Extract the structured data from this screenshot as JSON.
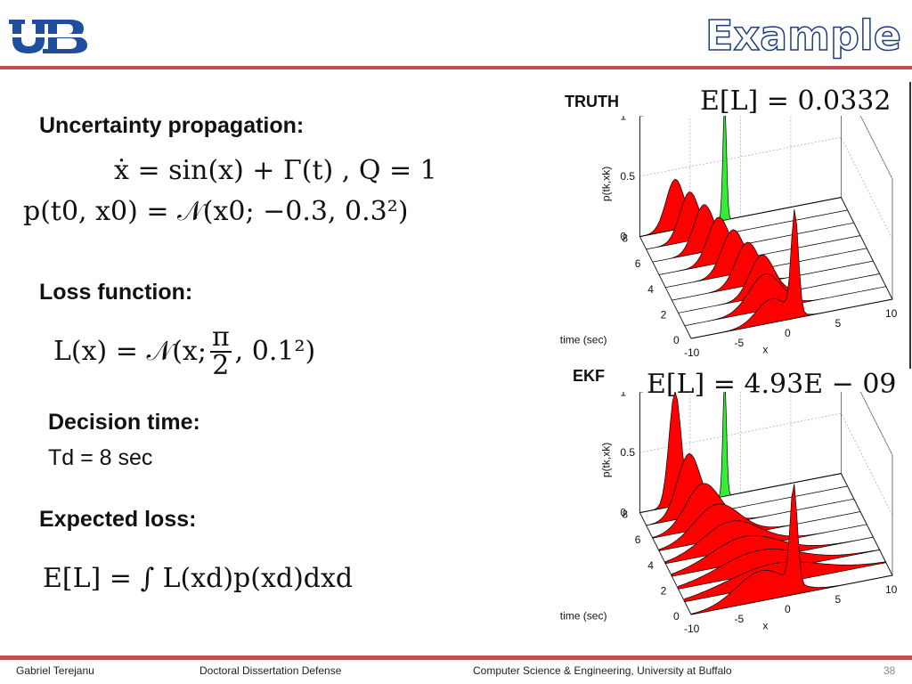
{
  "slide": {
    "title": "Example",
    "logo_text": "UB"
  },
  "left": {
    "uncertainty_heading": "Uncertainty propagation:",
    "eq1": "ẋ = sin(x) + Γ(t)     ,     Q = 1",
    "eq2": "p(t0, x0) = 𝒩(x0; −0.3, 0.3²)",
    "loss_heading": "Loss function:",
    "loss_eq_left": "L(x) = 𝒩(x;",
    "loss_eq_num": "π",
    "loss_eq_den": "2",
    "loss_eq_right": ",  0.1²)",
    "decision_heading": "Decision time:",
    "decision_value": "Td = 8 sec",
    "expected_heading": "Expected loss:",
    "expected_eq": "E[L] = ∫ L(xd)p(xd)dxd"
  },
  "plots": [
    {
      "label": "TRUTH",
      "expected_loss": "E[L] = 0.0332",
      "zlabel": "p(tk,xk)",
      "ylabel": "time (sec)",
      "xlabel": "x",
      "z_ticks": [
        "1",
        "0.5",
        "0"
      ],
      "t_ticks": [
        "8",
        "6",
        "4",
        "2",
        "0"
      ],
      "x_ticks": [
        "-10",
        "-5",
        "0",
        "5",
        "10"
      ]
    },
    {
      "label": "EKF",
      "expected_loss": "E[L] = 4.93E − 09",
      "zlabel": "p(tk,xk)",
      "ylabel": "time (sec)",
      "xlabel": "x",
      "z_ticks": [
        "1",
        "0.5",
        "0"
      ],
      "t_ticks": [
        "8",
        "6",
        "4",
        "2",
        "0"
      ],
      "x_ticks": [
        "-10",
        "-5",
        "0",
        "5",
        "10"
      ]
    }
  ],
  "footer": {
    "author": "Gabriel Terejanu",
    "event": "Doctoral Dissertation Defense",
    "dept": "Computer Science & Engineering, University at Buffalo",
    "page": "38"
  },
  "colors": {
    "accent_rule": "#c0504d",
    "title_stroke": "#1f3d7a",
    "logo_blue": "#1f4e9c",
    "density_red": "#ff0000",
    "loss_green": "#33ee33"
  }
}
